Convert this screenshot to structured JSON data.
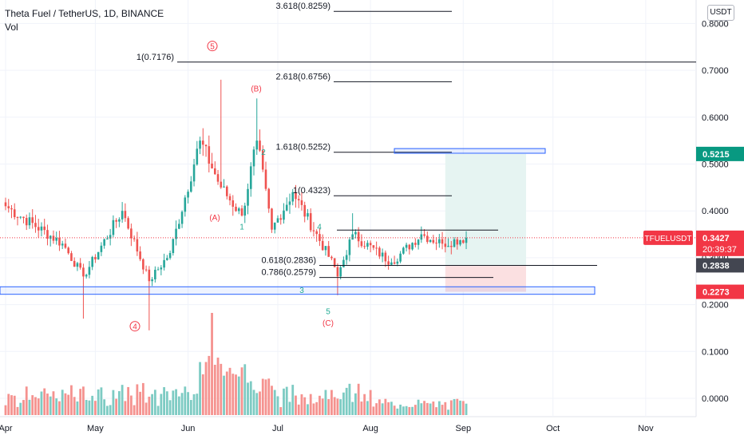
{
  "header": {
    "title": "Theta Fuel / TetherUS, 1D, BINANCE",
    "volume_label": "Vol",
    "currency_button": "USDT"
  },
  "price_axis": {
    "ticks": [
      "0.8000",
      "0.7000",
      "0.6000",
      "0.5000",
      "0.4000",
      "0.3000",
      "0.2000",
      "0.1000",
      "0.0000"
    ],
    "tick_values": [
      0.8,
      0.7,
      0.6,
      0.5,
      0.4,
      0.3,
      0.2,
      0.1,
      0.0
    ],
    "labels": [
      {
        "text": "0.5215",
        "value": 0.5215,
        "color": "#089981"
      },
      {
        "text": "TFUELUSDT",
        "value": 0.3427,
        "color": "#f23645",
        "kind": "symbol"
      },
      {
        "text": "0.3427",
        "value": 0.3427,
        "color": "#f23645"
      },
      {
        "text": "20:39:37",
        "value": 0.3427,
        "color": "#f23645",
        "kind": "countdown"
      },
      {
        "text": "0.2838",
        "value": 0.2838,
        "color": "#434651"
      },
      {
        "text": "0.2273",
        "value": 0.2273,
        "color": "#f23645"
      }
    ]
  },
  "time_axis": {
    "ticks": [
      "Apr",
      "May",
      "Jun",
      "Jul",
      "Aug",
      "Sep",
      "Oct",
      "Nov"
    ]
  },
  "fib_levels": [
    {
      "label": "3.618(0.8259)",
      "value": 0.8259
    },
    {
      "label": "1(0.7176)",
      "value": 0.7176
    },
    {
      "label": "2.618(0.6756)",
      "value": 0.6756
    },
    {
      "label": "1.618(0.5252)",
      "value": 0.5252
    },
    {
      "label": "1(0.4323)",
      "value": 0.4323
    },
    {
      "label": "0.618(0.2836)",
      "value": 0.2836
    },
    {
      "label": "0.786(0.2579)",
      "value": 0.2579
    }
  ],
  "wave_labels": [
    {
      "text": "5",
      "circled": true,
      "color": "#f23645"
    },
    {
      "text": "(B)",
      "color": "#f23645"
    },
    {
      "text": "2",
      "color": "#22ab94"
    },
    {
      "text": "(A)",
      "color": "#f23645"
    },
    {
      "text": "1",
      "color": "#22ab94"
    },
    {
      "text": "4",
      "color": "#22ab94"
    },
    {
      "text": "3",
      "color": "#22ab94"
    },
    {
      "text": "5",
      "color": "#22ab94"
    },
    {
      "text": "(C)",
      "color": "#f23645"
    },
    {
      "text": "4",
      "circled": true,
      "color": "#f23645"
    }
  ],
  "colors": {
    "up": "#26a69a",
    "down": "#ef5350",
    "vol_up": "#7dcbc3",
    "vol_down": "#f5928f",
    "grid": "#f0f3fa",
    "fib": "#131722",
    "box": "#2962ff",
    "tp_zone": "#e6f4f2",
    "sl_zone": "#fbe0e1"
  },
  "chart_data": {
    "type": "candlestick",
    "symbol": "TFUELUSDT",
    "timeframe": "1D",
    "ylim": [
      -0.035,
      0.86
    ],
    "last_price": 0.3427,
    "range_box": {
      "entry": 0.2838,
      "target": 0.5215,
      "stop": 0.2273
    },
    "key_points": [
      {
        "date": "Apr 1",
        "close": 0.41
      },
      {
        "date": "Apr 20",
        "close": 0.33
      },
      {
        "date": "Apr 27",
        "low": 0.17,
        "close": 0.26
      },
      {
        "date": "May 10",
        "close": 0.4
      },
      {
        "date": "May 19",
        "low": 0.145,
        "close": 0.25
      },
      {
        "date": "May 26",
        "close": 0.31
      },
      {
        "date": "Jun 5",
        "close": 0.55
      },
      {
        "date": "Jun 12",
        "high": 0.68,
        "close": 0.45
      },
      {
        "date": "Jun 19",
        "close": 0.39
      },
      {
        "date": "Jun 24",
        "high": 0.64,
        "close": 0.55
      },
      {
        "date": "Jun 29",
        "close": 0.36
      },
      {
        "date": "Jul 6",
        "close": 0.44
      },
      {
        "date": "Jul 20",
        "close": 0.28
      },
      {
        "date": "Jul 21",
        "low": 0.22,
        "close": 0.26
      },
      {
        "date": "Jul 26",
        "high": 0.395,
        "close": 0.35
      },
      {
        "date": "Aug 8",
        "close": 0.29
      },
      {
        "date": "Aug 18",
        "close": 0.35
      },
      {
        "date": "Aug 25",
        "close": 0.33
      },
      {
        "date": "Sep 2",
        "close": 0.3427
      }
    ]
  }
}
